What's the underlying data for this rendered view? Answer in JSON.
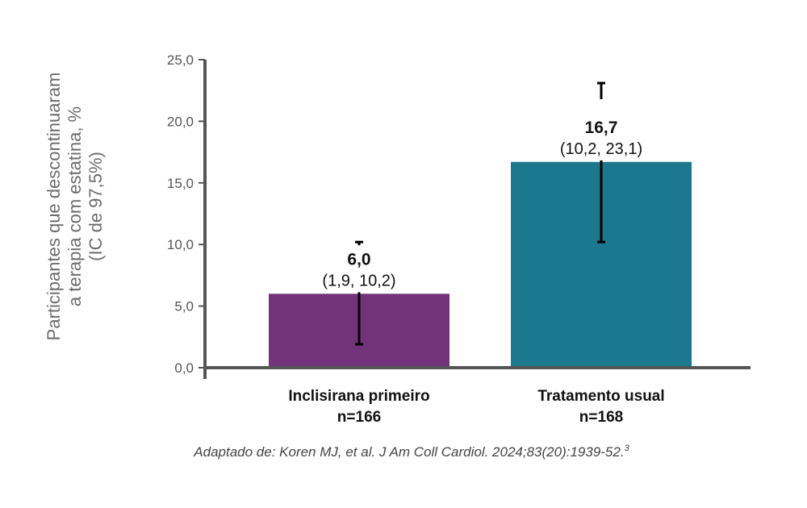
{
  "chart_data": {
    "type": "bar",
    "title": "",
    "ylabel": [
      "Participantes que descontinuaram",
      "a terapia com estatina, %",
      "(IC de 97,5%)"
    ],
    "xlabel": "",
    "ylim": [
      0,
      25
    ],
    "yticks": [
      0,
      5,
      10,
      15,
      20,
      25
    ],
    "ytick_labels": [
      "0,0",
      "5,0",
      "10,0",
      "15,0",
      "20,0",
      "25,0"
    ],
    "grid": false,
    "categories": [
      {
        "name": "Inclisirana primeiro",
        "n": "n=166"
      },
      {
        "name": "Tratamento usual",
        "n": "n=168"
      }
    ],
    "values": [
      6.0,
      16.7
    ],
    "ci_lower": [
      1.9,
      10.2
    ],
    "ci_upper": [
      10.2,
      23.1
    ],
    "value_labels": [
      "6,0",
      "16,7"
    ],
    "ci_labels": [
      "(1,9, 10,2)",
      "(10,2, 23,1)"
    ],
    "colors": [
      "#72337a",
      "#1b788e"
    ],
    "caption": "Adaptado de: Koren MJ, et al. J Am Coll Cardiol. 2024;83(20):1939-52.",
    "caption_superscript": "3"
  }
}
